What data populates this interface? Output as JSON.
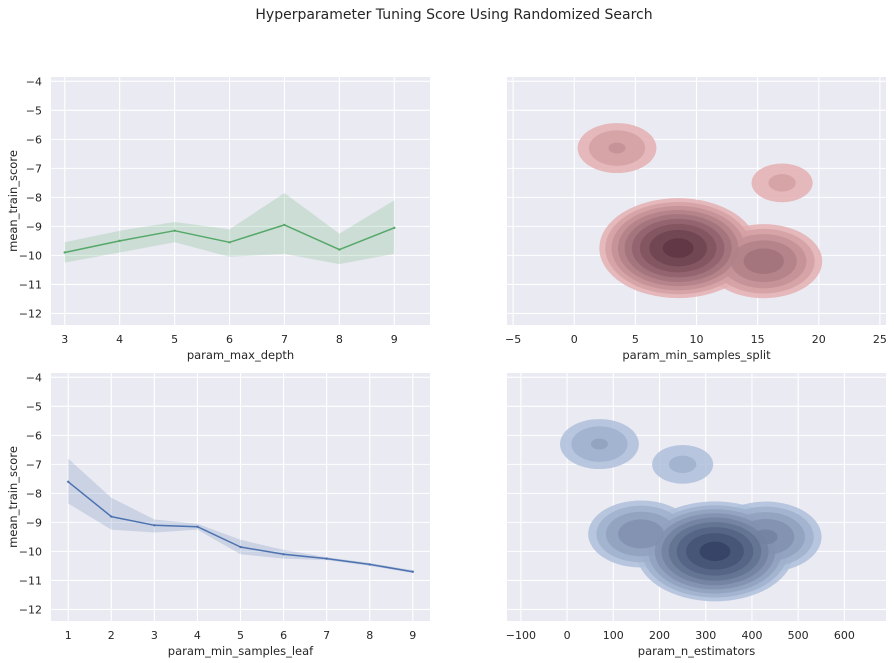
{
  "title": "Hyperparameter Tuning Score Using Randomized Search",
  "colors": {
    "panel_bg": "#eaeaf2",
    "grid": "#ffffff",
    "green": "#55a868",
    "blue": "#4c72b0",
    "red": "#c44e52"
  },
  "chart_data": [
    {
      "type": "line",
      "xlabel": "param_max_depth",
      "ylabel": "mean_train_score",
      "x": [
        3,
        4,
        5,
        6,
        7,
        8,
        9
      ],
      "series": [
        {
          "values": [
            -9.9,
            -9.5,
            -9.15,
            -9.55,
            -8.95,
            -9.8,
            -9.05
          ],
          "ci_upper": [
            -9.55,
            -9.15,
            -8.85,
            -9.1,
            -7.85,
            -9.25,
            -8.1
          ],
          "ci_lower": [
            -10.25,
            -9.9,
            -9.55,
            -10.05,
            -9.95,
            -10.3,
            -9.95
          ],
          "color": "green"
        }
      ],
      "xticks": [
        3,
        4,
        5,
        6,
        7,
        8,
        9
      ],
      "yticks": [
        -4,
        -5,
        -6,
        -7,
        -8,
        -9,
        -10,
        -11,
        -12
      ],
      "xlim": [
        2.75,
        9.65
      ],
      "ylim": [
        -12.4,
        -3.85
      ],
      "grid": true
    },
    {
      "type": "area",
      "kind": "kde_2d",
      "xlabel": "param_min_samples_split",
      "ylabel": "",
      "color": "red",
      "density_peaks": [
        {
          "x": 8.5,
          "y": -9.75,
          "weight": 1.0
        },
        {
          "x": 15.5,
          "y": -10.2,
          "weight": 0.55
        },
        {
          "x": 3.5,
          "y": -6.3,
          "weight": 0.25
        },
        {
          "x": 17,
          "y": -7.5,
          "weight": 0.15
        }
      ],
      "xticks": [
        -5,
        0,
        5,
        10,
        15,
        20,
        25
      ],
      "yticks": [
        -4,
        -5,
        -6,
        -7,
        -8,
        -9,
        -10,
        -11,
        -12
      ],
      "xlim": [
        -5.5,
        25.5
      ],
      "ylim": [
        -12.4,
        -3.85
      ],
      "levels": 9,
      "grid": true
    },
    {
      "type": "line",
      "xlabel": "param_min_samples_leaf",
      "ylabel": "mean_train_score",
      "x": [
        1,
        2,
        3,
        4,
        5,
        6,
        7,
        8,
        9
      ],
      "series": [
        {
          "values": [
            -7.6,
            -8.8,
            -9.1,
            -9.15,
            -9.85,
            -10.1,
            -10.25,
            -10.45,
            -10.7
          ],
          "ci_upper": [
            -6.8,
            -8.15,
            -8.9,
            -9.05,
            -9.6,
            -9.95,
            -10.2,
            -10.4,
            -10.65
          ],
          "ci_lower": [
            -8.35,
            -9.25,
            -9.35,
            -9.25,
            -10.1,
            -10.25,
            -10.3,
            -10.5,
            -10.75
          ],
          "color": "blue"
        }
      ],
      "xticks": [
        1,
        2,
        3,
        4,
        5,
        6,
        7,
        8,
        9
      ],
      "yticks": [
        -4,
        -5,
        -6,
        -7,
        -8,
        -9,
        -10,
        -11,
        -12
      ],
      "xlim": [
        0.6,
        9.4
      ],
      "ylim": [
        -12.4,
        -3.85
      ],
      "grid": true
    },
    {
      "type": "area",
      "kind": "kde_2d",
      "xlabel": "param_n_estimators",
      "ylabel": "",
      "color": "blue",
      "density_peaks": [
        {
          "x": 320,
          "y": -10.0,
          "weight": 1.0
        },
        {
          "x": 160,
          "y": -9.4,
          "weight": 0.45
        },
        {
          "x": 430,
          "y": -9.5,
          "weight": 0.5
        },
        {
          "x": 70,
          "y": -6.3,
          "weight": 0.25
        },
        {
          "x": 250,
          "y": -7.0,
          "weight": 0.15
        }
      ],
      "xticks": [
        -100,
        0,
        100,
        200,
        300,
        400,
        500,
        600
      ],
      "yticks": [
        -4,
        -5,
        -6,
        -7,
        -8,
        -9,
        -10,
        -11,
        -12
      ],
      "xlim": [
        -130,
        690
      ],
      "ylim": [
        -12.4,
        -3.85
      ],
      "levels": 9,
      "grid": true
    }
  ]
}
